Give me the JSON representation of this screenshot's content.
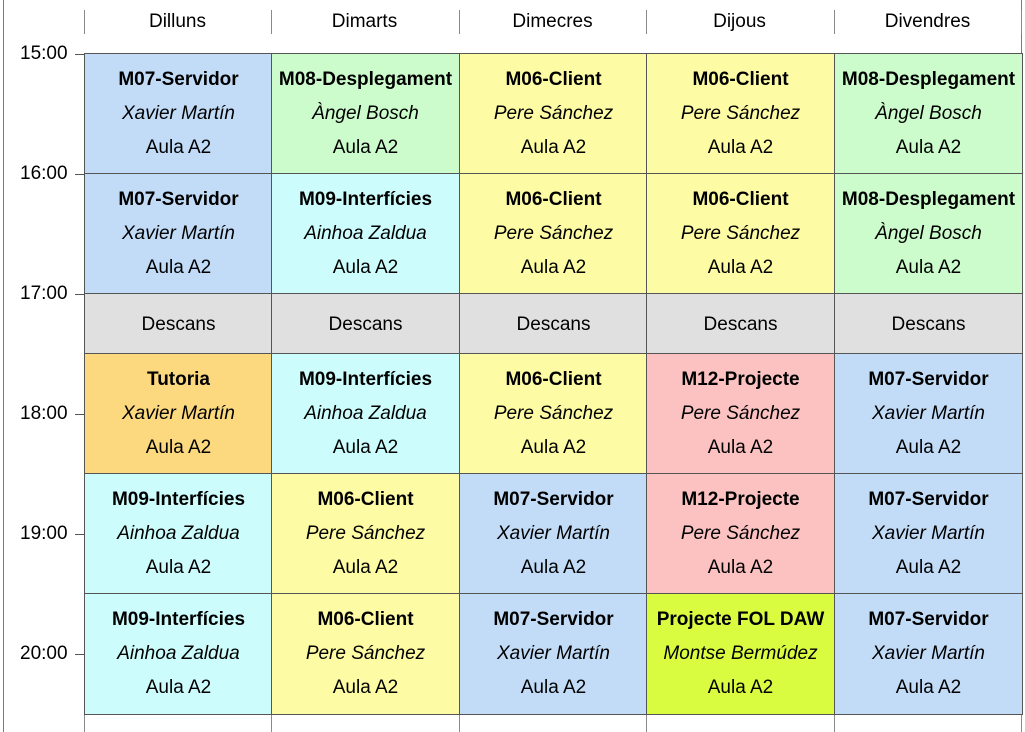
{
  "days": [
    "Dilluns",
    "Dimarts",
    "Dimecres",
    "Dijous",
    "Divendres"
  ],
  "times": [
    "15:00",
    "16:00",
    "17:00",
    "18:00",
    "19:00",
    "20:00"
  ],
  "colors": {
    "blue": "#c2dcf8",
    "green": "#ccfccc",
    "yellow": "#fdfca4",
    "cyan": "#ccfcfc",
    "orange": "#fcd97f",
    "pink": "#fcc2c2",
    "lime": "#d9fc40",
    "gray": "#e0e0e0"
  },
  "row1": [
    {
      "title": "M07-Servidor",
      "teacher": "Xavier Martín",
      "room": "Aula A2",
      "color": "blue"
    },
    {
      "title": "M08-Desplegament",
      "teacher": "Àngel Bosch",
      "room": "Aula A2",
      "color": "green"
    },
    {
      "title": "M06-Client",
      "teacher": "Pere Sánchez",
      "room": "Aula A2",
      "color": "yellow"
    },
    {
      "title": "M06-Client",
      "teacher": "Pere Sánchez",
      "room": "Aula A2",
      "color": "yellow"
    },
    {
      "title": "M08-Desplegament",
      "teacher": "Àngel Bosch",
      "room": "Aula A2",
      "color": "green"
    }
  ],
  "row2": [
    {
      "title": "M07-Servidor",
      "teacher": "Xavier Martín",
      "room": "Aula A2",
      "color": "blue"
    },
    {
      "title": "M09-Interfícies",
      "teacher": "Ainhoa Zaldua",
      "room": "Aula A2",
      "color": "cyan"
    },
    {
      "title": "M06-Client",
      "teacher": "Pere Sánchez",
      "room": "Aula A2",
      "color": "yellow"
    },
    {
      "title": "M06-Client",
      "teacher": "Pere Sánchez",
      "room": "Aula A2",
      "color": "yellow"
    },
    {
      "title": "M08-Desplegament",
      "teacher": "Àngel Bosch",
      "room": "Aula A2",
      "color": "green"
    }
  ],
  "breaks": [
    "Descans",
    "Descans",
    "Descans",
    "Descans",
    "Descans"
  ],
  "row3": [
    {
      "title": "Tutoria",
      "teacher": "Xavier Martín",
      "room": "Aula A2",
      "color": "orange"
    },
    {
      "title": "M09-Interfícies",
      "teacher": "Ainhoa Zaldua",
      "room": "Aula A2",
      "color": "cyan"
    },
    {
      "title": "M06-Client",
      "teacher": "Pere Sánchez",
      "room": "Aula A2",
      "color": "yellow"
    },
    {
      "title": "M12-Projecte",
      "teacher": "Pere Sánchez",
      "room": "Aula A2",
      "color": "pink"
    },
    {
      "title": "M07-Servidor",
      "teacher": "Xavier Martín",
      "room": "Aula A2",
      "color": "blue"
    }
  ],
  "row4": [
    {
      "title": "M09-Interfícies",
      "teacher": "Ainhoa Zaldua",
      "room": "Aula A2",
      "color": "cyan"
    },
    {
      "title": "M06-Client",
      "teacher": "Pere Sánchez",
      "room": "Aula A2",
      "color": "yellow"
    },
    {
      "title": "M07-Servidor",
      "teacher": "Xavier Martín",
      "room": "Aula A2",
      "color": "blue"
    },
    {
      "title": "M12-Projecte",
      "teacher": "Pere Sánchez",
      "room": "Aula A2",
      "color": "pink"
    },
    {
      "title": "M07-Servidor",
      "teacher": "Xavier Martín",
      "room": "Aula A2",
      "color": "blue"
    }
  ],
  "row5": [
    {
      "title": "M09-Interfícies",
      "teacher": "Ainhoa Zaldua",
      "room": "Aula A2",
      "color": "cyan"
    },
    {
      "title": "M06-Client",
      "teacher": "Pere Sánchez",
      "room": "Aula A2",
      "color": "yellow"
    },
    {
      "title": "M07-Servidor",
      "teacher": "Xavier Martín",
      "room": "Aula A2",
      "color": "blue"
    },
    {
      "title": "Projecte FOL DAW",
      "teacher": "Montse Bermúdez",
      "room": "Aula A2",
      "color": "lime"
    },
    {
      "title": "M07-Servidor",
      "teacher": "Xavier Martín",
      "room": "Aula A2",
      "color": "blue"
    }
  ]
}
